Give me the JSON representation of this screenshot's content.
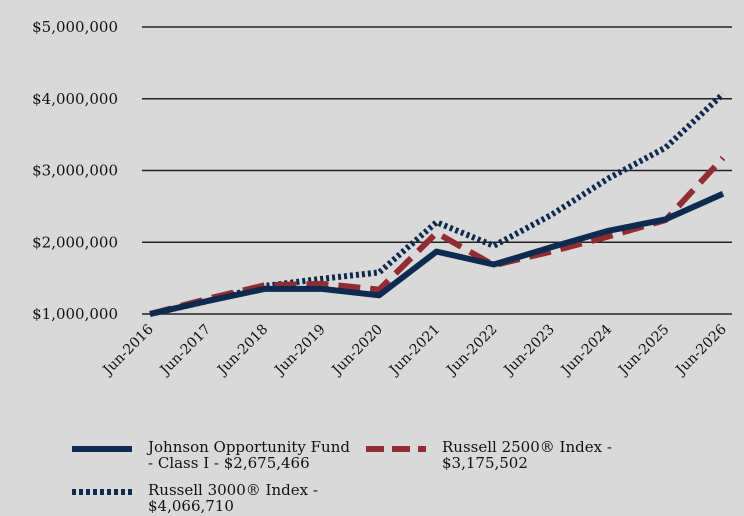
{
  "chart_data": {
    "type": "line",
    "title": "",
    "xlabel": "",
    "ylabel": "",
    "x": [
      "Jun-2016",
      "Jun-2017",
      "Jun-2018",
      "Jun-2019",
      "Jun-2020",
      "Jun-2021",
      "Jun-2022",
      "Jun-2023",
      "Jun-2024",
      "Jun-2025",
      "Jun-2026"
    ],
    "y_ticks": [
      "$1,000,000",
      "$2,000,000",
      "$3,000,000",
      "$4,000,000",
      "$5,000,000"
    ],
    "y_tick_values": [
      1000000,
      2000000,
      3000000,
      4000000,
      5000000
    ],
    "ylim": [
      1000000,
      5000000
    ],
    "grid": "horizontal",
    "legend_position": "bottom",
    "series": [
      {
        "name": "Johnson Opportunity Fund - Class I - $2,675,466",
        "color": "#0d2b52",
        "style": "solid",
        "values": [
          1000000,
          1180000,
          1350000,
          1350000,
          1260000,
          1870000,
          1690000,
          1930000,
          2160000,
          2320000,
          2675466
        ]
      },
      {
        "name": "Russell 2500® Index - $3,175,502",
        "color": "#962a33",
        "style": "dashed",
        "values": [
          1000000,
          1210000,
          1400000,
          1420000,
          1340000,
          2130000,
          1680000,
          1870000,
          2080000,
          2310000,
          3175502
        ]
      },
      {
        "name": "Russell 3000® Index - $4,066,710",
        "color": "#0d2b52",
        "style": "dotted",
        "values": [
          1000000,
          1180000,
          1390000,
          1490000,
          1580000,
          2280000,
          1950000,
          2380000,
          2890000,
          3320000,
          4066710
        ]
      }
    ]
  }
}
